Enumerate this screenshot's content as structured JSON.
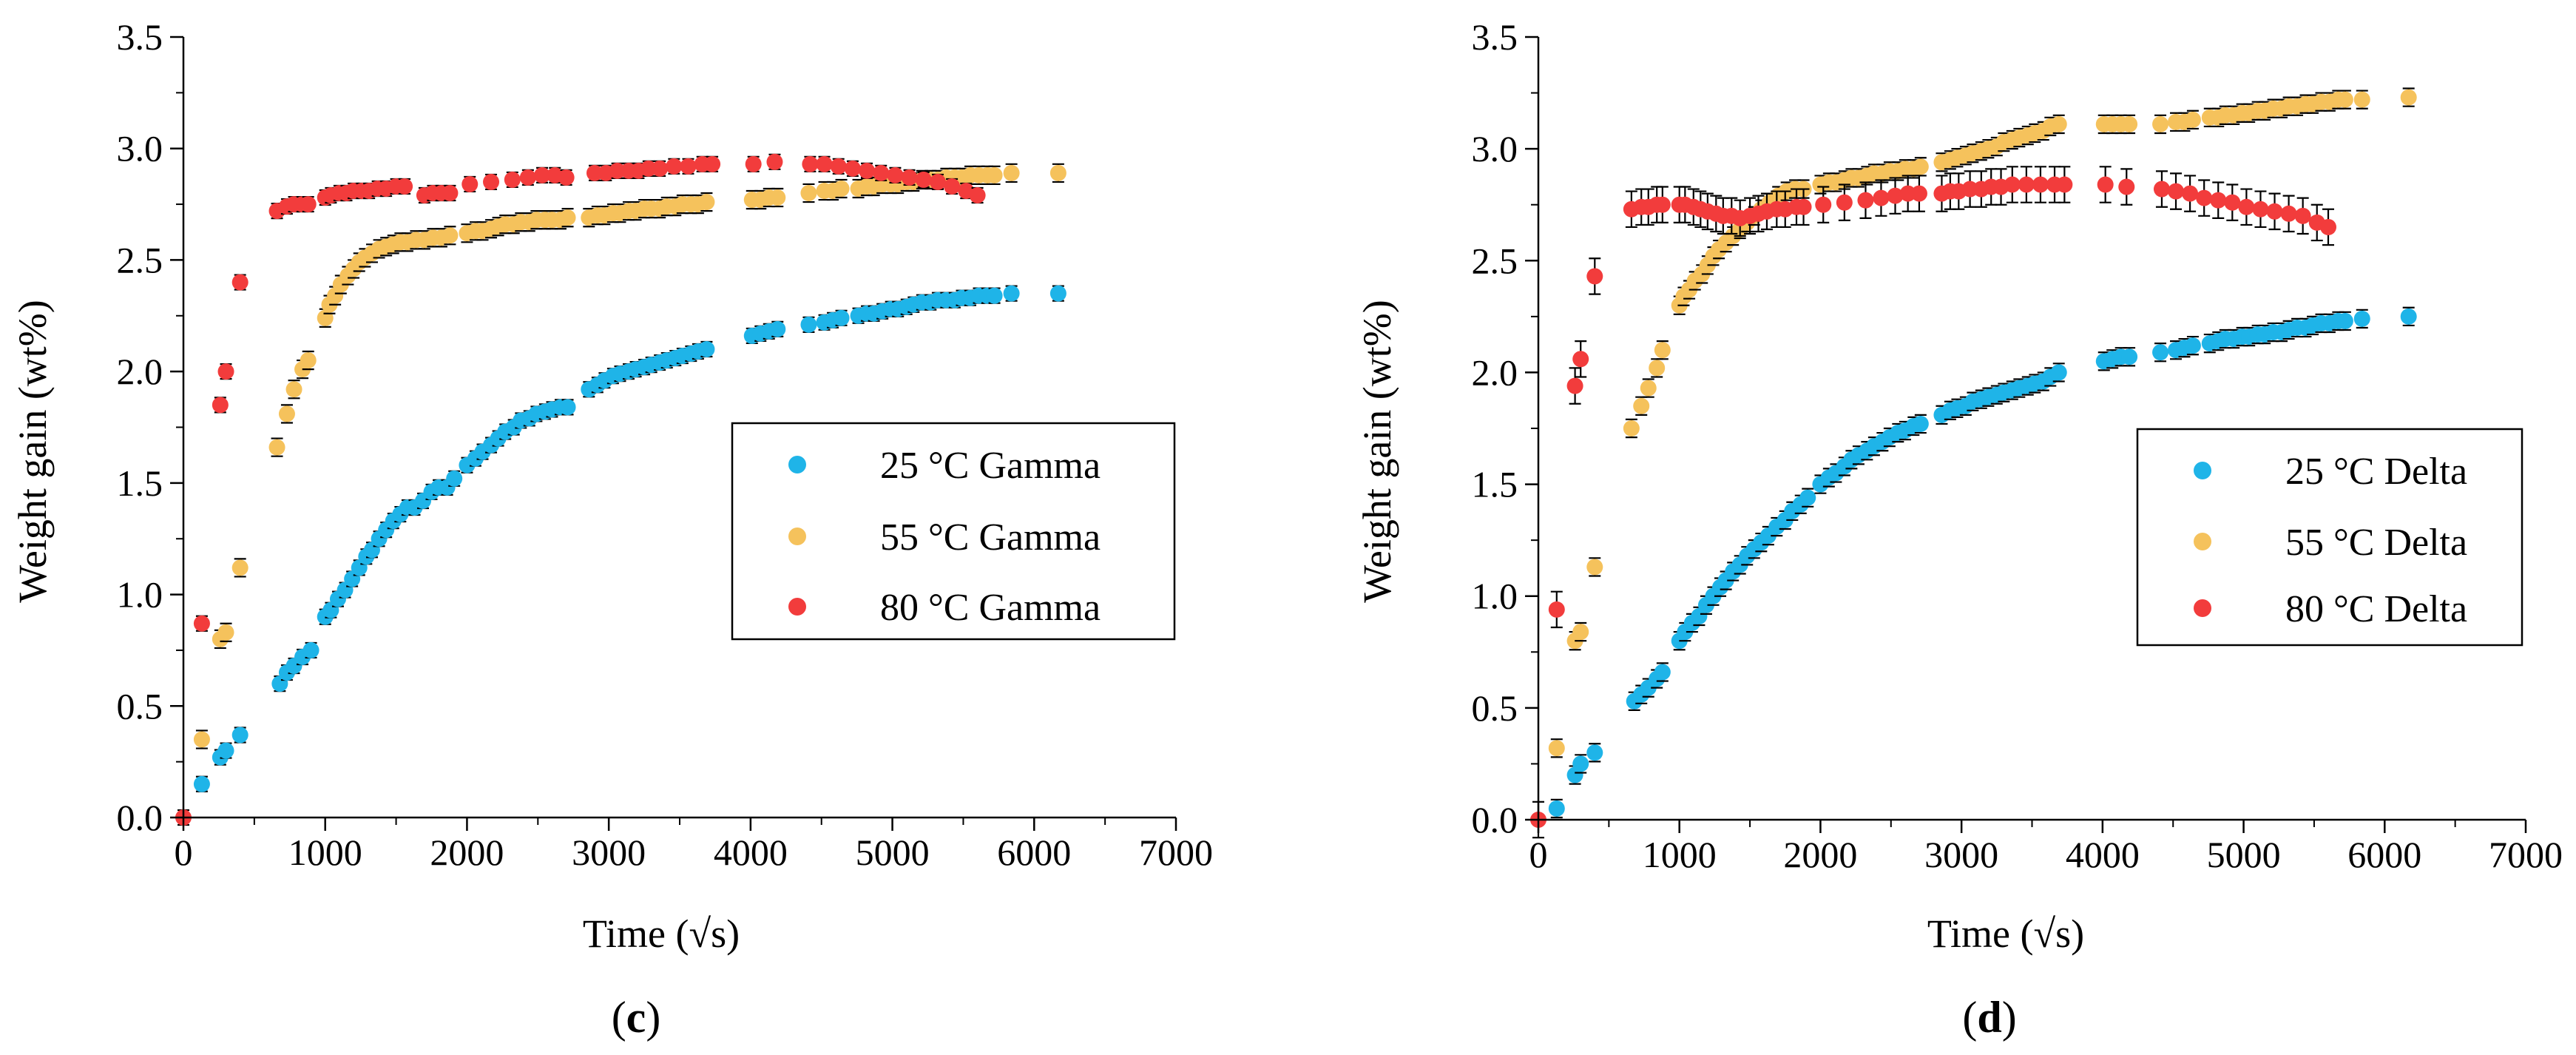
{
  "chart_data": [
    {
      "type": "scatter",
      "panel_label": {
        "open": "(",
        "letter": "c",
        "close": ")"
      },
      "xlabel": "Time (√s)",
      "ylabel": "Weight gain (wt%)",
      "xlim": [
        0,
        7000
      ],
      "ylim": [
        0,
        3.5
      ],
      "xticks": [
        "0",
        "1000",
        "2000",
        "3000",
        "4000",
        "5000",
        "6000",
        "7000"
      ],
      "yticks": [
        "0.0",
        "0.5",
        "1.0",
        "1.5",
        "2.0",
        "2.5",
        "3.0",
        "3.5"
      ],
      "legend_position": "center-right",
      "series": [
        {
          "name": "25 °C Gamma",
          "color": "#1fb4e8",
          "err": 0.03,
          "x": [
            130,
            260,
            300,
            400,
            680,
            730,
            780,
            840,
            900,
            1000,
            1040,
            1090,
            1140,
            1190,
            1240,
            1290,
            1330,
            1380,
            1430,
            1480,
            1530,
            1580,
            1630,
            1690,
            1750,
            1800,
            1860,
            1910,
            2000,
            2060,
            2110,
            2170,
            2220,
            2270,
            2330,
            2380,
            2440,
            2490,
            2550,
            2600,
            2660,
            2710,
            2860,
            2920,
            2970,
            3030,
            3080,
            3140,
            3190,
            3250,
            3300,
            3360,
            3410,
            3470,
            3520,
            3580,
            3630,
            3690,
            4010,
            4070,
            4130,
            4190,
            4410,
            4520,
            4580,
            4640,
            4760,
            4820,
            4870,
            4930,
            4990,
            5040,
            5100,
            5150,
            5210,
            5270,
            5320,
            5380,
            5440,
            5490,
            5550,
            5610,
            5670,
            5720,
            5840,
            6170
          ],
          "y": [
            0.15,
            0.27,
            0.3,
            0.37,
            0.6,
            0.65,
            0.68,
            0.72,
            0.75,
            0.9,
            0.93,
            0.98,
            1.02,
            1.07,
            1.12,
            1.17,
            1.2,
            1.25,
            1.29,
            1.33,
            1.36,
            1.39,
            1.39,
            1.42,
            1.46,
            1.48,
            1.48,
            1.52,
            1.58,
            1.61,
            1.64,
            1.67,
            1.7,
            1.73,
            1.75,
            1.78,
            1.79,
            1.81,
            1.82,
            1.83,
            1.84,
            1.84,
            1.92,
            1.94,
            1.96,
            1.98,
            1.99,
            2.0,
            2.01,
            2.02,
            2.03,
            2.04,
            2.05,
            2.06,
            2.07,
            2.08,
            2.09,
            2.1,
            2.16,
            2.17,
            2.18,
            2.19,
            2.21,
            2.22,
            2.23,
            2.24,
            2.25,
            2.26,
            2.26,
            2.27,
            2.28,
            2.28,
            2.29,
            2.3,
            2.31,
            2.31,
            2.32,
            2.32,
            2.32,
            2.33,
            2.33,
            2.34,
            2.34,
            2.34,
            2.35,
            2.35
          ]
        },
        {
          "name": "55 °C Gamma",
          "color": "#f5c25c",
          "err": 0.04,
          "x": [
            130,
            260,
            300,
            400,
            660,
            730,
            780,
            840,
            880,
            1000,
            1030,
            1070,
            1110,
            1160,
            1200,
            1240,
            1280,
            1330,
            1380,
            1430,
            1480,
            1530,
            1580,
            1640,
            1700,
            1760,
            1820,
            1880,
            2000,
            2060,
            2110,
            2170,
            2220,
            2270,
            2330,
            2380,
            2440,
            2490,
            2550,
            2600,
            2660,
            2710,
            2860,
            2920,
            2970,
            3030,
            3080,
            3140,
            3190,
            3250,
            3300,
            3360,
            3410,
            3470,
            3520,
            3580,
            3630,
            3690,
            4010,
            4070,
            4130,
            4190,
            4410,
            4520,
            4580,
            4640,
            4760,
            4820,
            4870,
            4930,
            4990,
            5040,
            5100,
            5150,
            5210,
            5270,
            5320,
            5380,
            5440,
            5490,
            5550,
            5610,
            5670,
            5720,
            5840,
            6170
          ],
          "y": [
            0.35,
            0.8,
            0.83,
            1.12,
            1.66,
            1.81,
            1.92,
            2.01,
            2.05,
            2.24,
            2.3,
            2.34,
            2.39,
            2.43,
            2.46,
            2.49,
            2.51,
            2.53,
            2.55,
            2.56,
            2.57,
            2.58,
            2.58,
            2.59,
            2.59,
            2.6,
            2.6,
            2.61,
            2.62,
            2.63,
            2.63,
            2.64,
            2.65,
            2.66,
            2.66,
            2.67,
            2.67,
            2.68,
            2.68,
            2.68,
            2.68,
            2.69,
            2.69,
            2.7,
            2.7,
            2.71,
            2.71,
            2.72,
            2.72,
            2.73,
            2.73,
            2.73,
            2.74,
            2.74,
            2.75,
            2.75,
            2.75,
            2.76,
            2.77,
            2.77,
            2.78,
            2.78,
            2.8,
            2.81,
            2.81,
            2.82,
            2.82,
            2.83,
            2.83,
            2.84,
            2.84,
            2.84,
            2.85,
            2.85,
            2.86,
            2.86,
            2.86,
            2.87,
            2.87,
            2.87,
            2.88,
            2.88,
            2.88,
            2.88,
            2.89,
            2.89
          ]
        },
        {
          "name": "80 °C Gamma",
          "color": "#f23c3c",
          "err": 0.03,
          "x": [
            0,
            130,
            260,
            300,
            400,
            660,
            730,
            780,
            840,
            880,
            1000,
            1040,
            1100,
            1150,
            1200,
            1260,
            1310,
            1370,
            1430,
            1500,
            1560,
            1700,
            1760,
            1820,
            1880,
            2020,
            2170,
            2320,
            2430,
            2530,
            2620,
            2700,
            2900,
            2980,
            3060,
            3140,
            3210,
            3280,
            3360,
            3460,
            3560,
            3660,
            3730,
            4020,
            4170,
            4420,
            4520,
            4620,
            4720,
            4820,
            4920,
            5020,
            5120,
            5220,
            5320,
            5420,
            5520,
            5600
          ],
          "y": [
            0.0,
            0.87,
            1.85,
            2.0,
            2.4,
            2.72,
            2.74,
            2.75,
            2.75,
            2.75,
            2.78,
            2.79,
            2.8,
            2.8,
            2.81,
            2.81,
            2.81,
            2.82,
            2.82,
            2.83,
            2.83,
            2.79,
            2.8,
            2.8,
            2.8,
            2.84,
            2.85,
            2.86,
            2.87,
            2.88,
            2.88,
            2.87,
            2.89,
            2.89,
            2.9,
            2.9,
            2.9,
            2.91,
            2.91,
            2.92,
            2.92,
            2.93,
            2.93,
            2.93,
            2.94,
            2.93,
            2.93,
            2.92,
            2.91,
            2.9,
            2.89,
            2.88,
            2.87,
            2.86,
            2.85,
            2.83,
            2.81,
            2.79
          ]
        }
      ]
    },
    {
      "type": "scatter",
      "panel_label": {
        "open": "(",
        "letter": "d",
        "close": ")"
      },
      "xlabel": "Time (√s)",
      "ylabel": "Weight gain (wt%)",
      "xlim": [
        0,
        7000
      ],
      "ylim": [
        0,
        3.5
      ],
      "xticks": [
        "0",
        "1000",
        "2000",
        "3000",
        "4000",
        "5000",
        "6000",
        "7000"
      ],
      "yticks": [
        "0.0",
        "0.5",
        "1.0",
        "1.5",
        "2.0",
        "2.5",
        "3.0",
        "3.5"
      ],
      "legend_position": "center-right",
      "series": [
        {
          "name": "25 °C Delta",
          "color": "#1fb4e8",
          "err": 0.04,
          "x": [
            130,
            260,
            300,
            400,
            680,
            730,
            780,
            840,
            880,
            1000,
            1040,
            1090,
            1140,
            1190,
            1240,
            1290,
            1330,
            1380,
            1430,
            1480,
            1530,
            1580,
            1630,
            1690,
            1750,
            1800,
            1860,
            1910,
            2000,
            2060,
            2110,
            2170,
            2220,
            2270,
            2330,
            2380,
            2440,
            2490,
            2550,
            2600,
            2660,
            2710,
            2860,
            2920,
            2970,
            3030,
            3080,
            3140,
            3190,
            3250,
            3300,
            3360,
            3410,
            3470,
            3520,
            3580,
            3630,
            3690,
            4010,
            4070,
            4130,
            4190,
            4410,
            4520,
            4580,
            4640,
            4760,
            4820,
            4870,
            4930,
            4990,
            5040,
            5100,
            5150,
            5210,
            5270,
            5320,
            5380,
            5440,
            5490,
            5550,
            5610,
            5670,
            5720,
            5840,
            6170
          ],
          "y": [
            0.05,
            0.2,
            0.25,
            0.3,
            0.53,
            0.56,
            0.59,
            0.63,
            0.66,
            0.8,
            0.84,
            0.88,
            0.91,
            0.96,
            1.0,
            1.04,
            1.07,
            1.11,
            1.14,
            1.18,
            1.21,
            1.24,
            1.27,
            1.31,
            1.34,
            1.38,
            1.41,
            1.44,
            1.5,
            1.53,
            1.55,
            1.58,
            1.61,
            1.63,
            1.65,
            1.67,
            1.69,
            1.71,
            1.73,
            1.74,
            1.76,
            1.77,
            1.81,
            1.83,
            1.84,
            1.85,
            1.87,
            1.88,
            1.89,
            1.9,
            1.91,
            1.92,
            1.93,
            1.94,
            1.95,
            1.96,
            1.98,
            2.0,
            2.05,
            2.06,
            2.07,
            2.07,
            2.09,
            2.1,
            2.11,
            2.12,
            2.13,
            2.14,
            2.15,
            2.15,
            2.16,
            2.16,
            2.17,
            2.17,
            2.18,
            2.18,
            2.19,
            2.2,
            2.2,
            2.21,
            2.22,
            2.22,
            2.23,
            2.23,
            2.24,
            2.25
          ]
        },
        {
          "name": "55 °C Delta",
          "color": "#f5c25c",
          "err": 0.04,
          "x": [
            130,
            260,
            300,
            400,
            660,
            730,
            780,
            840,
            880,
            1000,
            1030,
            1070,
            1110,
            1160,
            1200,
            1240,
            1280,
            1330,
            1380,
            1430,
            1480,
            1530,
            1580,
            1640,
            1700,
            1760,
            1820,
            1880,
            2000,
            2060,
            2110,
            2170,
            2220,
            2270,
            2330,
            2380,
            2440,
            2490,
            2550,
            2600,
            2660,
            2710,
            2860,
            2920,
            2970,
            3030,
            3080,
            3140,
            3190,
            3250,
            3300,
            3360,
            3410,
            3470,
            3520,
            3580,
            3630,
            3690,
            4010,
            4070,
            4130,
            4190,
            4410,
            4520,
            4580,
            4640,
            4760,
            4820,
            4870,
            4930,
            4990,
            5040,
            5100,
            5150,
            5210,
            5270,
            5320,
            5380,
            5440,
            5490,
            5550,
            5610,
            5670,
            5720,
            5840,
            6170
          ],
          "y": [
            0.32,
            0.8,
            0.84,
            1.13,
            1.75,
            1.85,
            1.93,
            2.02,
            2.1,
            2.3,
            2.34,
            2.37,
            2.41,
            2.44,
            2.48,
            2.52,
            2.55,
            2.58,
            2.61,
            2.64,
            2.67,
            2.7,
            2.73,
            2.76,
            2.79,
            2.81,
            2.82,
            2.82,
            2.84,
            2.85,
            2.85,
            2.86,
            2.87,
            2.87,
            2.88,
            2.89,
            2.89,
            2.9,
            2.9,
            2.91,
            2.91,
            2.92,
            2.94,
            2.95,
            2.96,
            2.97,
            2.98,
            2.99,
            3.0,
            3.01,
            3.03,
            3.04,
            3.05,
            3.06,
            3.07,
            3.08,
            3.1,
            3.11,
            3.11,
            3.11,
            3.11,
            3.11,
            3.11,
            3.12,
            3.12,
            3.13,
            3.14,
            3.14,
            3.15,
            3.15,
            3.16,
            3.16,
            3.17,
            3.17,
            3.18,
            3.18,
            3.19,
            3.19,
            3.2,
            3.2,
            3.21,
            3.21,
            3.22,
            3.22,
            3.22,
            3.23
          ]
        },
        {
          "name": "80 °C Delta",
          "color": "#f23c3c",
          "err": 0.08,
          "x": [
            0,
            130,
            260,
            300,
            400,
            660,
            730,
            780,
            840,
            880,
            1000,
            1040,
            1100,
            1150,
            1200,
            1260,
            1310,
            1370,
            1430,
            1500,
            1560,
            1620,
            1690,
            1750,
            1830,
            1880,
            2020,
            2170,
            2320,
            2430,
            2530,
            2620,
            2700,
            2860,
            2920,
            2980,
            3060,
            3140,
            3210,
            3280,
            3360,
            3460,
            3560,
            3660,
            3730,
            4020,
            4170,
            4420,
            4520,
            4620,
            4720,
            4820,
            4920,
            5020,
            5120,
            5220,
            5320,
            5420,
            5520,
            5600
          ],
          "y": [
            0.0,
            0.94,
            1.94,
            2.06,
            2.43,
            2.73,
            2.74,
            2.74,
            2.75,
            2.75,
            2.75,
            2.75,
            2.74,
            2.73,
            2.72,
            2.71,
            2.7,
            2.7,
            2.69,
            2.7,
            2.71,
            2.72,
            2.73,
            2.73,
            2.74,
            2.74,
            2.75,
            2.76,
            2.77,
            2.78,
            2.79,
            2.8,
            2.8,
            2.8,
            2.81,
            2.81,
            2.82,
            2.82,
            2.83,
            2.83,
            2.84,
            2.84,
            2.84,
            2.84,
            2.84,
            2.84,
            2.83,
            2.82,
            2.81,
            2.8,
            2.78,
            2.77,
            2.76,
            2.74,
            2.73,
            2.72,
            2.71,
            2.7,
            2.67,
            2.65
          ]
        }
      ]
    }
  ]
}
